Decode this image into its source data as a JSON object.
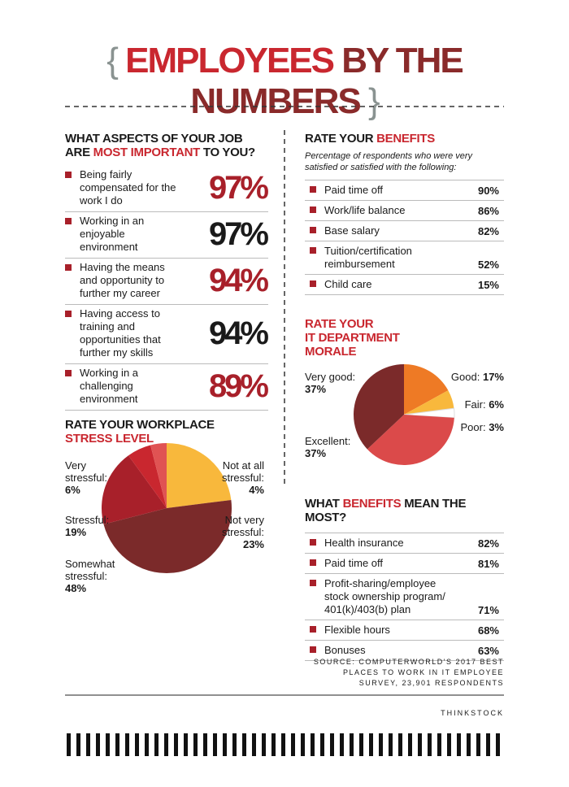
{
  "header": {
    "title_parts": [
      "EMPLOYEES",
      "BY THE NUMBERS"
    ]
  },
  "important": {
    "title_parts": [
      "WHAT ASPECTS OF YOUR JOB ARE",
      "MOST IMPORTANT",
      "TO YOU?"
    ],
    "rows": [
      [
        "Being fairly compensated for the work I do",
        "97%"
      ],
      [
        "Working in an enjoyable environment",
        "97%"
      ],
      [
        "Having the means and opportunity to further my career",
        "94%"
      ],
      [
        "Having access to training and opportunities that further my skills",
        "94%"
      ],
      [
        "Working in a challenging environment",
        "89%"
      ]
    ]
  },
  "benefits": {
    "title_parts": [
      "RATE YOUR",
      "BENEFITS"
    ],
    "subtitle": "Percentage of respondents who were very satisfied or satisfied with the following:",
    "rows": [
      [
        "Paid time off",
        "90%"
      ],
      [
        "Work/life balance",
        "86%"
      ],
      [
        "Base salary",
        "82%"
      ],
      [
        "Tuition/certification reimbursement",
        "52%"
      ],
      [
        "Child care",
        "15%"
      ]
    ]
  },
  "chart_data": [
    {
      "type": "pie",
      "title_parts": [
        "RATE YOUR WORKPLACE",
        "STRESS LEVEL"
      ],
      "categories": [
        "Not very stressful:",
        "Somewhat stressful:",
        "Stressful:",
        "Very stressful:",
        "Not at all stressful:"
      ],
      "values": [
        23,
        48,
        19,
        6,
        4
      ],
      "value_labels": [
        "23%",
        "48%",
        "19%",
        "6%",
        "4%"
      ],
      "colors": [
        "#f8b83c",
        "#7b2a2a",
        "#a8202a",
        "#c9272f",
        "#e05353"
      ]
    },
    {
      "type": "pie",
      "title_parts": [
        "RATE YOUR",
        "IT DEPARTMENT",
        "MORALE"
      ],
      "categories": [
        "Good:",
        "Fair:",
        "Poor:",
        "Excellent:",
        "Very good:"
      ],
      "values": [
        17,
        6,
        3,
        37,
        37
      ],
      "value_labels": [
        "17%",
        "6%",
        "3%",
        "37%",
        "37%"
      ],
      "colors": [
        "#ee7a25",
        "#f8b83c",
        "#ffffff",
        "#db4a4a",
        "#7b2a2a"
      ]
    }
  ],
  "benefits_most": {
    "title_parts": [
      "WHAT",
      "BENEFITS",
      "MEAN THE MOST?"
    ],
    "rows": [
      [
        "Health insurance",
        "82%"
      ],
      [
        "Paid time off",
        "81%"
      ],
      [
        "Profit-sharing/employee stock ownership program/ 401(k)/403(b) plan",
        "71%"
      ],
      [
        "Flexible hours",
        "68%"
      ],
      [
        "Bonuses",
        "63%"
      ]
    ]
  },
  "source": "SOURCE: COMPUTERWORLD'S 2017 BEST PLACES TO WORK IN IT EMPLOYEE SURVEY, 23,901 RESPONDENTS",
  "credit": "THINKSTOCK"
}
